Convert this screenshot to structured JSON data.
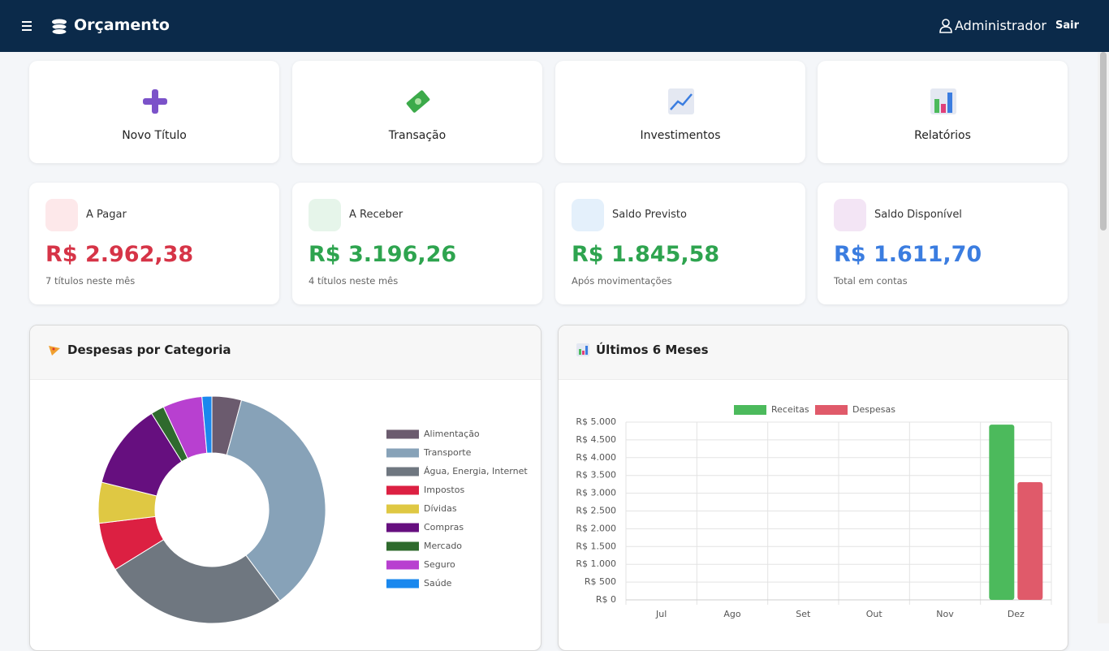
{
  "nav": {
    "brand": "Orçamento",
    "user": "Administrador",
    "logout": "Sair"
  },
  "actions": [
    {
      "label": "Novo Título"
    },
    {
      "label": "Transação"
    },
    {
      "label": "Investimentos"
    },
    {
      "label": "Relatórios"
    }
  ],
  "summary": [
    {
      "label": "A Pagar",
      "amount": "R$ 2.962,38",
      "note": "7 títulos neste mês",
      "color": "#d63447"
    },
    {
      "label": "A Receber",
      "amount": "R$ 3.196,26",
      "note": "4 títulos neste mês",
      "color": "#2ea44f"
    },
    {
      "label": "Saldo Previsto",
      "amount": "R$ 1.845,58",
      "note": "Após movimentações",
      "color": "#2ea44f"
    },
    {
      "label": "Saldo Disponível",
      "amount": "R$ 1.611,70",
      "note": "Total em contas",
      "color": "#3b7de0"
    }
  ],
  "chart_data": [
    {
      "type": "doughnut",
      "title": "Despesas por Categoria",
      "categories": [
        "Alimentação",
        "Transporte",
        "Água, Energia, Internet",
        "Impostos",
        "Dívidas",
        "Compras",
        "Mercado",
        "Seguro",
        "Saúde"
      ],
      "values": [
        4.2,
        35.6,
        26.4,
        6.9,
        5.8,
        12.2,
        1.9,
        5.6,
        1.4
      ],
      "colors": [
        "#6b5b6e",
        "#87a2b8",
        "#6f7780",
        "#dc2042",
        "#dfc843",
        "#660f7f",
        "#2f6a2d",
        "#b840d0",
        "#1a88ee"
      ],
      "legend": "right"
    },
    {
      "type": "bar",
      "title": "Últimos 6 Meses",
      "categories": [
        "Jul",
        "Ago",
        "Set",
        "Out",
        "Nov",
        "Dez"
      ],
      "series": [
        {
          "name": "Receitas",
          "color": "#4cba5c",
          "values": [
            0,
            0,
            0,
            0,
            0,
            4930
          ]
        },
        {
          "name": "Despesas",
          "color": "#e05a6a",
          "values": [
            0,
            0,
            0,
            0,
            0,
            3310
          ]
        }
      ],
      "ylim": [
        0,
        5000
      ],
      "yticks": [
        {
          "value": 0,
          "label": "R$ 0"
        },
        {
          "value": 500,
          "label": "R$ 500"
        },
        {
          "value": 1000,
          "label": "R$ 1.000"
        },
        {
          "value": 1500,
          "label": "R$ 1.500"
        },
        {
          "value": 2000,
          "label": "R$ 2.000"
        },
        {
          "value": 2500,
          "label": "R$ 2.500"
        },
        {
          "value": 3000,
          "label": "R$ 3.000"
        },
        {
          "value": 3500,
          "label": "R$ 3.500"
        },
        {
          "value": 4000,
          "label": "R$ 4.000"
        },
        {
          "value": 4500,
          "label": "R$ 4.500"
        },
        {
          "value": 5000,
          "label": "R$ 5.000"
        }
      ],
      "grid": true,
      "legend": "top"
    }
  ]
}
